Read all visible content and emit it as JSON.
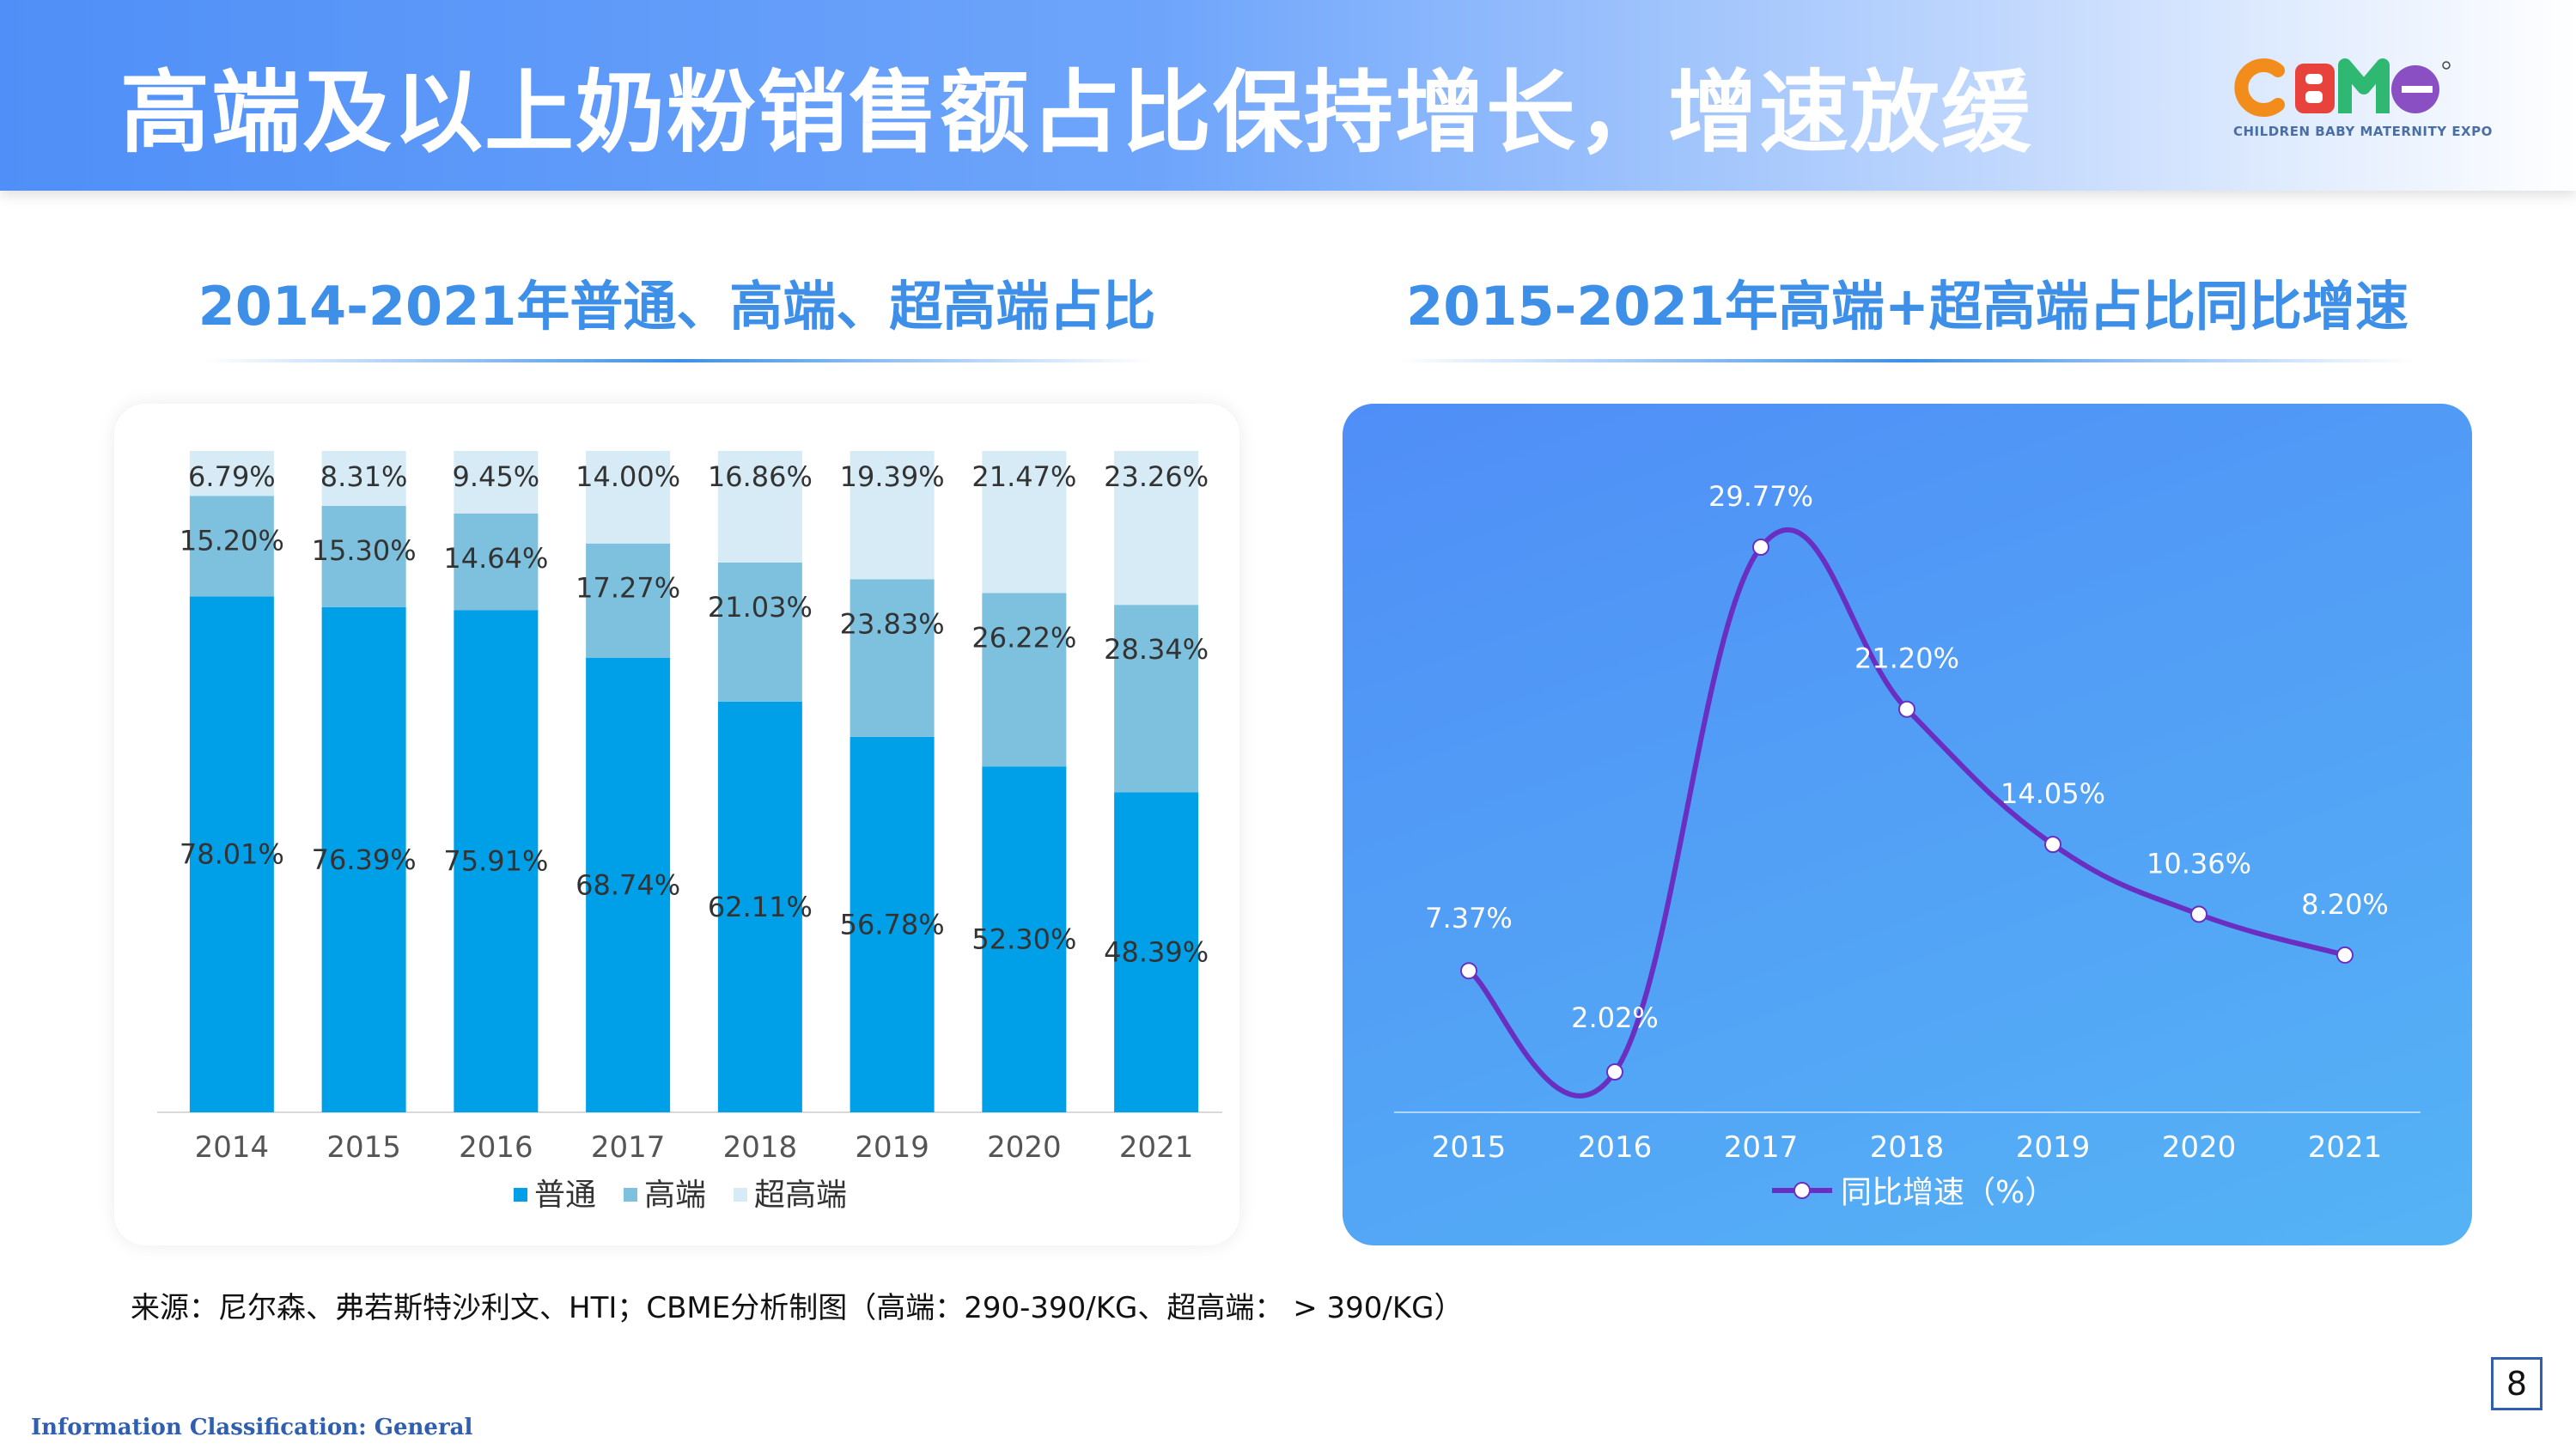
{
  "header": {
    "title": "高端及以上奶粉销售额占比保持增长，增速放缓",
    "logo_text": "CBME",
    "logo_subtitle": "CHILDREN BABY MATERNITY EXPO"
  },
  "colors": {
    "normal": "#00a0e9",
    "high": "#7ec1de",
    "ultra": "#d6ebf5",
    "line": "#6a2fc0",
    "title_blue": "#3d8fe8"
  },
  "chart_data": [
    {
      "type": "bar",
      "stacked": true,
      "title": "2014-2021年普通、高端、超高端占比",
      "categories": [
        "2014",
        "2015",
        "2016",
        "2017",
        "2018",
        "2019",
        "2020",
        "2021"
      ],
      "series": [
        {
          "name": "普通",
          "values": [
            78.01,
            76.39,
            75.91,
            68.74,
            62.11,
            56.78,
            52.3,
            48.39
          ],
          "labels": [
            "78.01%",
            "76.39%",
            "75.91%",
            "68.74%",
            "62.11%",
            "56.78%",
            "52.30%",
            "48.39%"
          ]
        },
        {
          "name": "高端",
          "values": [
            15.2,
            15.3,
            14.64,
            17.27,
            21.03,
            23.83,
            26.22,
            28.34
          ],
          "labels": [
            "15.20%",
            "15.30%",
            "14.64%",
            "17.27%",
            "21.03%",
            "23.83%",
            "26.22%",
            "28.34%"
          ]
        },
        {
          "name": "超高端",
          "values": [
            6.79,
            8.31,
            9.45,
            14.0,
            16.86,
            19.39,
            21.47,
            23.26
          ],
          "labels": [
            "6.79%",
            "8.31%",
            "9.45%",
            "14.00%",
            "16.86%",
            "19.39%",
            "21.47%",
            "23.26%"
          ]
        }
      ],
      "ylim": [
        0,
        100
      ],
      "legend_position": "bottom"
    },
    {
      "type": "line",
      "title": "2015-2021年高端+超高端占比同比增速",
      "categories": [
        "2015",
        "2016",
        "2017",
        "2018",
        "2019",
        "2020",
        "2021"
      ],
      "series": [
        {
          "name": "同比增速（%）",
          "values": [
            7.37,
            2.02,
            29.77,
            21.2,
            14.05,
            10.36,
            8.2
          ],
          "labels": [
            "7.37%",
            "2.02%",
            "29.77%",
            "21.20%",
            "14.05%",
            "10.36%",
            "8.20%"
          ]
        }
      ],
      "smooth": true,
      "legend_position": "bottom"
    }
  ],
  "footer": {
    "source": "来源：尼尔森、弗若斯特沙利文、HTI；CBME分析制图（高端：290-390/KG、超高端： > 390/KG）",
    "classification": "Information Classification: General",
    "page_number": "8"
  }
}
